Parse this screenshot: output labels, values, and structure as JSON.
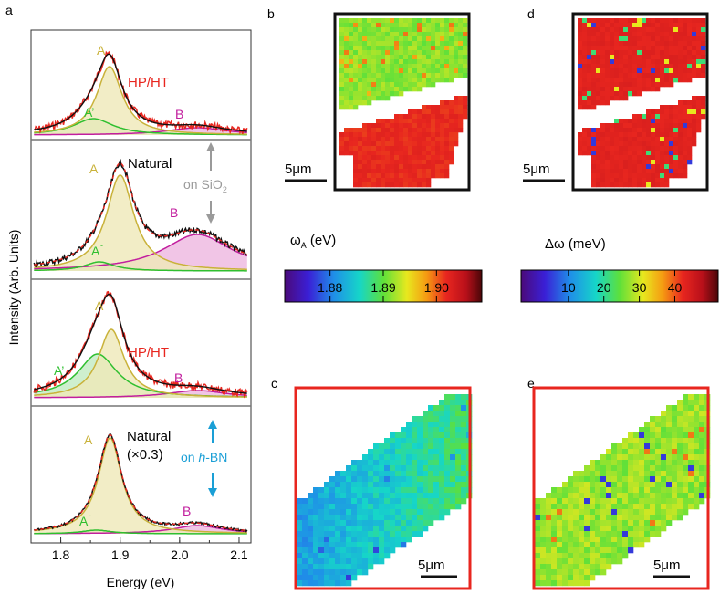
{
  "panel_labels": {
    "a": "a",
    "b": "b",
    "c": "c",
    "d": "d",
    "e": "e"
  },
  "spectra": {
    "ylabel": "Intensity (Arb. Units)",
    "xlabel": "Energy (eV)",
    "xticks": [
      "1.8",
      "1.9",
      "2.0",
      "2.1"
    ],
    "panels": [
      {
        "title": "HP/HT",
        "title_color": "#e8261f",
        "labels": {
          "A": "A",
          "Aprime": "A’",
          "B": "B"
        }
      },
      {
        "title": "Natural",
        "title_color": "#000000",
        "labels": {
          "A": "A",
          "Aminus": "A",
          "B": "B"
        },
        "annotation": {
          "text": "on SiO",
          "sub": "2"
        }
      },
      {
        "title": "HP/HT",
        "title_color": "#e8261f",
        "labels": {
          "A": "A",
          "Aprime": "A’",
          "B": "B"
        }
      },
      {
        "title": "Natural",
        "subtitle": "(×0.3)",
        "title_color": "#000000",
        "labels": {
          "A": "A",
          "Aminus": "A",
          "B": "B"
        },
        "annotation": {
          "text": "on ",
          "italic": "h",
          "rest": "-BN"
        }
      }
    ],
    "colors": {
      "A": "#c9b23a",
      "Aprime": "#2fbf2f",
      "B": "#c21e9e",
      "data": "#e8261f",
      "fit": "#000000",
      "sio2": "#9a9a9a",
      "hbn": "#1a9fd6"
    }
  },
  "colorbar_left": {
    "label": "ω",
    "label_sub": "A",
    "label_unit": " (eV)",
    "ticks": [
      "1.88",
      "1.89",
      "1.90"
    ]
  },
  "colorbar_right": {
    "label": "Δω  (meV)",
    "ticks": [
      "10",
      "20",
      "30",
      "40"
    ]
  },
  "scalebars": {
    "b": "5μm",
    "c": "5μm",
    "d": "5μm",
    "e": "5μm"
  }
}
